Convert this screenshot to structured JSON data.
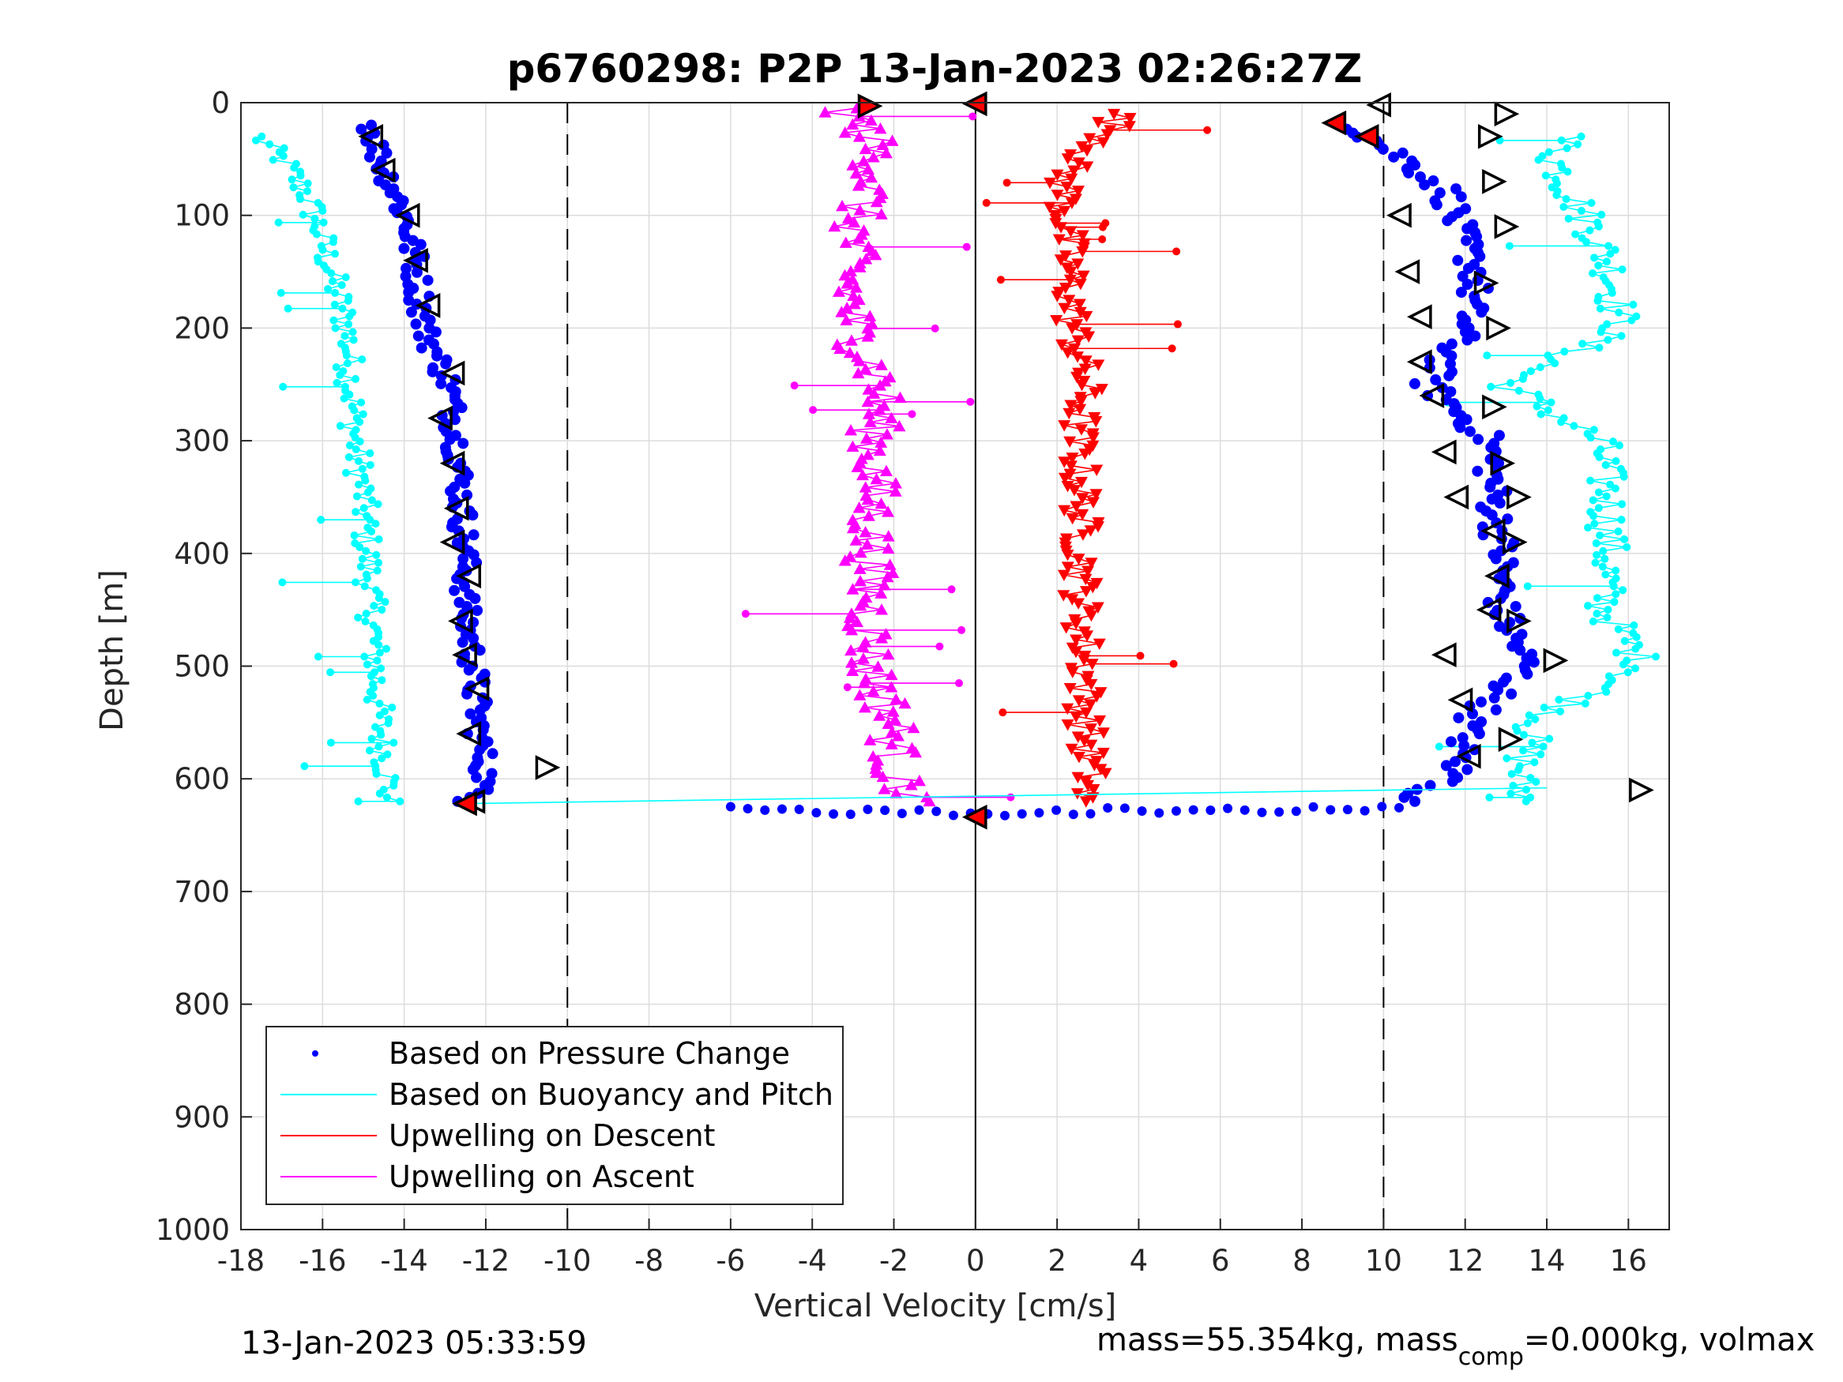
{
  "chart_data": {
    "type": "scatter",
    "title": "p6760298: P2P 13-Jan-2023 02:26:27Z",
    "xlabel": "Vertical Velocity [cm/s]",
    "ylabel": "Depth [m]",
    "xlim": [
      -18,
      17
    ],
    "ylim": [
      1000,
      0
    ],
    "y_reversed": true,
    "grid": true,
    "xticks": [
      "-18",
      "-16",
      "-14",
      "-12",
      "-10",
      "-8",
      "-6",
      "-4",
      "-2",
      "0",
      "2",
      "4",
      "6",
      "8",
      "10",
      "12",
      "14",
      "16"
    ],
    "yticks": [
      "0",
      "100",
      "200",
      "300",
      "400",
      "500",
      "600",
      "700",
      "800",
      "900",
      "1000"
    ],
    "reference_lines": [
      {
        "x": -10,
        "style": "dashed"
      },
      {
        "x": 0,
        "style": "solid"
      },
      {
        "x": 10,
        "style": "dashed"
      }
    ],
    "legend": {
      "position": "bottom-left",
      "entries": [
        {
          "label": "Based on Pressure Change",
          "color": "#0000ff",
          "marker": "dot"
        },
        {
          "label": "Based on Buoyancy and Pitch",
          "color": "#00ffff",
          "marker": "line"
        },
        {
          "label": "Upwelling on Descent",
          "color": "#ff0000",
          "marker": "line"
        },
        {
          "label": "Upwelling on Ascent",
          "color": "#ff00ff",
          "marker": "line"
        }
      ]
    },
    "series": [
      {
        "name": "Based on Pressure Change",
        "color": "#0000ff",
        "note": "descent (left) and ascent (right) profiles",
        "depth": [
          20,
          50,
          80,
          110,
          150,
          200,
          250,
          300,
          350,
          400,
          450,
          500,
          550,
          600,
          620
        ],
        "descent_velocity": [
          -14.8,
          -14.6,
          -14.2,
          -13.9,
          -13.7,
          -13.5,
          -12.9,
          -12.7,
          -12.6,
          -12.5,
          -12.5,
          -12.3,
          -12.2,
          -12.0,
          -12.4
        ],
        "ascent_velocity": [
          9.2,
          10.5,
          11.6,
          11.8,
          12.3,
          12.0,
          11.1,
          12.6,
          12.7,
          12.9,
          12.9,
          13.5,
          12.1,
          11.7,
          10.5
        ]
      },
      {
        "name": "Based on Buoyancy and Pitch",
        "color": "#00ffff",
        "depth": [
          30,
          50,
          80,
          110,
          150,
          200,
          250,
          300,
          350,
          400,
          450,
          500,
          550,
          600,
          620
        ],
        "descent_velocity": [
          -17.6,
          -17.0,
          -16.4,
          -16.1,
          -15.8,
          -15.4,
          -15.3,
          -15.2,
          -15.0,
          -14.9,
          -14.8,
          -14.7,
          -14.6,
          -14.4,
          -14.4
        ],
        "ascent_velocity": [
          14.5,
          14.2,
          14.6,
          15.1,
          15.6,
          15.8,
          13.0,
          15.3,
          15.5,
          15.5,
          15.4,
          16.4,
          13.7,
          13.3,
          13.5
        ]
      },
      {
        "name": "Upwelling on Descent",
        "color": "#ff0000",
        "depth": [
          10,
          30,
          60,
          100,
          150,
          200,
          250,
          300,
          350,
          400,
          450,
          500,
          550,
          600,
          620
        ],
        "velocity": [
          3.5,
          3.3,
          2.2,
          2.2,
          2.3,
          2.4,
          2.7,
          2.5,
          2.6,
          2.6,
          2.6,
          2.7,
          2.7,
          2.8,
          2.6
        ]
      },
      {
        "name": "Upwelling on Ascent",
        "color": "#ff00ff",
        "depth": [
          5,
          30,
          60,
          100,
          150,
          200,
          250,
          300,
          350,
          400,
          450,
          500,
          550,
          600,
          620
        ],
        "velocity": [
          -3.2,
          -2.6,
          -2.4,
          -2.9,
          -3.1,
          -3.0,
          -2.3,
          -2.5,
          -2.5,
          -2.6,
          -2.6,
          -2.6,
          -2.0,
          -2.0,
          -1.3
        ]
      }
    ]
  },
  "footer": {
    "timestamp": "13-Jan-2023 05:33:59",
    "mass_prefix": "mass=55.354kg, mass",
    "mass_sub": "comp",
    "mass_suffix": "=0.000kg, volmax"
  }
}
